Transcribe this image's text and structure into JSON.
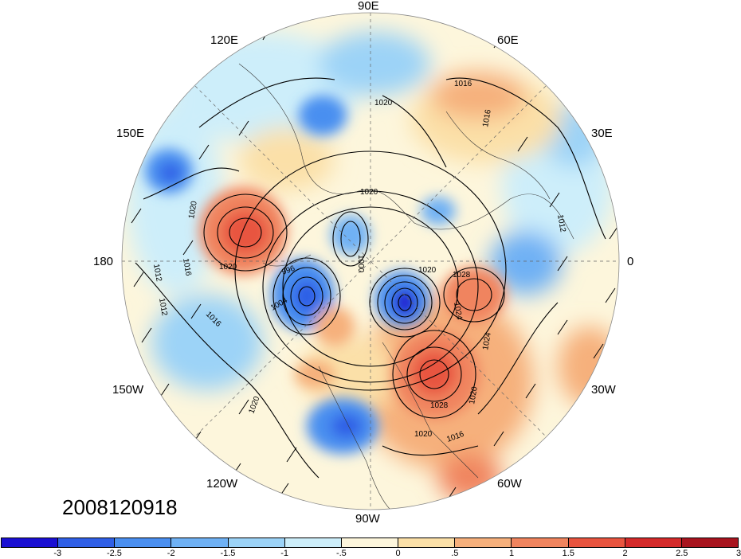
{
  "timestamp": "2008120918",
  "longitude_labels": {
    "lon_90e": "90E",
    "lon_120e": "120E",
    "lon_60e": "60E",
    "lon_150e": "150E",
    "lon_30e": "30E",
    "lon_180": "180",
    "lon_0": "0",
    "lon_150w": "150W",
    "lon_30w": "30W",
    "lon_120w": "120W",
    "lon_60w": "60W",
    "lon_90w": "90W"
  },
  "colorbar": {
    "colors": [
      "#1a0fd2",
      "#2f5fe6",
      "#4a8ff0",
      "#6fb1f4",
      "#9cd3f7",
      "#cdeefa",
      "#fdf6dc",
      "#fbe0a8",
      "#f6b07c",
      "#f0845e",
      "#e8543f",
      "#d42a2a",
      "#a8141e"
    ],
    "ticks": [
      "-3",
      "-2.5",
      "-2",
      "-1.5",
      "-1",
      "-.5",
      "0",
      ".5",
      "1",
      "1.5",
      "2",
      "2.5",
      "3"
    ]
  },
  "isobar_labels": [
    "1016",
    "1020",
    "1020",
    "1020",
    "1016",
    "1012",
    "1012",
    "1016",
    "1020",
    "1004",
    "996",
    "1000",
    "1020",
    "1028",
    "1024",
    "1024",
    "1020",
    "1028",
    "1020",
    "1016",
    "1020",
    "1016",
    "1012"
  ]
}
